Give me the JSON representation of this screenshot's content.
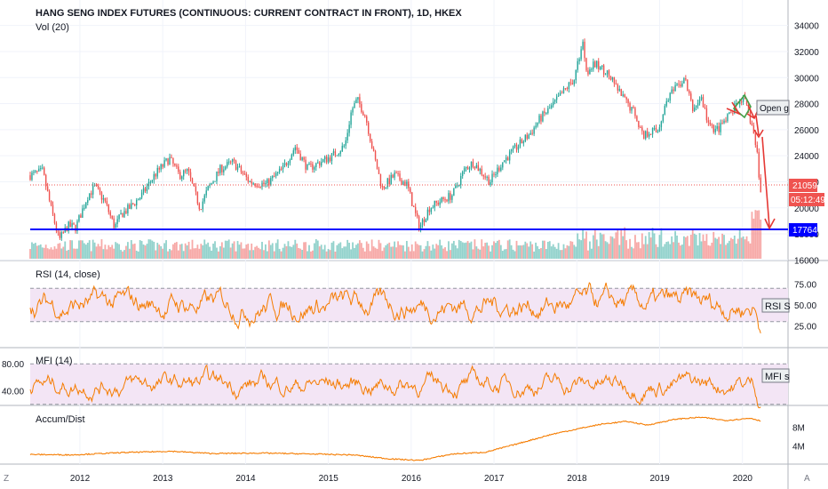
{
  "header": {
    "title": "HANG SENG INDEX FUTURES (CONTINUOUS: CURRENT CONTRACT IN FRONT), 1D, HKEX",
    "volume_label": "Vol (20)"
  },
  "labels": {
    "open_label": "Open g",
    "price_badge": "21059",
    "countdown": "05:12:49",
    "support_badge": "17764",
    "rsi_title": "RSI (14, close)",
    "rsi_tag": "RSI S",
    "mfi_title": "MFI (14)",
    "mfi_tag": "MFI s",
    "ad_title": "Accum/Dist",
    "corner_left": "Z",
    "corner_right": "A"
  },
  "colors": {
    "up": "#26a69a",
    "down": "#ef5350",
    "indicator": "#f57c00",
    "support_line": "#0000ff",
    "band_fill": "#f3e5f5",
    "arrows": "#e53935"
  },
  "chart_data": [
    {
      "type": "candlestick",
      "title": "HANG SENG INDEX FUTURES (CONTINUOUS: CURRENT CONTRACT IN FRONT), 1D, HKEX",
      "y_ticks": [
        "34000",
        "32000",
        "30000",
        "28000",
        "26000",
        "24000",
        "22000",
        "20000",
        "18000",
        "16000"
      ],
      "ylim": [
        15000,
        35000
      ],
      "x_ticks": [
        "2012",
        "2013",
        "2014",
        "2015",
        "2016",
        "2017",
        "2018",
        "2019",
        "2020"
      ],
      "xlim": [
        2011.4,
        2020.55
      ],
      "last_price": 21059,
      "horizontal_line": 17764,
      "close_anchors": [
        [
          2011.4,
          22500
        ],
        [
          2011.55,
          22800
        ],
        [
          2011.65,
          20000
        ],
        [
          2011.75,
          17500
        ],
        [
          2011.85,
          18600
        ],
        [
          2011.95,
          18500
        ],
        [
          2012.1,
          21000
        ],
        [
          2012.18,
          21600
        ],
        [
          2012.3,
          20500
        ],
        [
          2012.42,
          18500
        ],
        [
          2012.5,
          19500
        ],
        [
          2012.6,
          20000
        ],
        [
          2012.75,
          21000
        ],
        [
          2012.9,
          22500
        ],
        [
          2013.08,
          23800
        ],
        [
          2013.2,
          22500
        ],
        [
          2013.3,
          22800
        ],
        [
          2013.45,
          20000
        ],
        [
          2013.55,
          21500
        ],
        [
          2013.7,
          23000
        ],
        [
          2013.85,
          23500
        ],
        [
          2014.05,
          22000
        ],
        [
          2014.25,
          21800
        ],
        [
          2014.45,
          23000
        ],
        [
          2014.6,
          24700
        ],
        [
          2014.75,
          23000
        ],
        [
          2014.9,
          23500
        ],
        [
          2015.05,
          24000
        ],
        [
          2015.2,
          24800
        ],
        [
          2015.28,
          27500
        ],
        [
          2015.35,
          28300
        ],
        [
          2015.45,
          27000
        ],
        [
          2015.55,
          24000
        ],
        [
          2015.65,
          21500
        ],
        [
          2015.8,
          22500
        ],
        [
          2015.95,
          21800
        ],
        [
          2016.05,
          19500
        ],
        [
          2016.1,
          18500
        ],
        [
          2016.22,
          20000
        ],
        [
          2016.35,
          20500
        ],
        [
          2016.5,
          21000
        ],
        [
          2016.65,
          23000
        ],
        [
          2016.75,
          23500
        ],
        [
          2016.95,
          22000
        ],
        [
          2017.1,
          23500
        ],
        [
          2017.25,
          24500
        ],
        [
          2017.45,
          25800
        ],
        [
          2017.55,
          26800
        ],
        [
          2017.7,
          27800
        ],
        [
          2017.85,
          29000
        ],
        [
          2017.97,
          29900
        ],
        [
          2018.07,
          32800
        ],
        [
          2018.12,
          30500
        ],
        [
          2018.22,
          31000
        ],
        [
          2018.35,
          30500
        ],
        [
          2018.45,
          29500
        ],
        [
          2018.55,
          28500
        ],
        [
          2018.7,
          27300
        ],
        [
          2018.8,
          25500
        ],
        [
          2018.9,
          26000
        ],
        [
          2018.97,
          25800
        ],
        [
          2019.1,
          28500
        ],
        [
          2019.25,
          29500
        ],
        [
          2019.3,
          30000
        ],
        [
          2019.4,
          27500
        ],
        [
          2019.5,
          28500
        ],
        [
          2019.6,
          26200
        ],
        [
          2019.7,
          26000
        ],
        [
          2019.8,
          26700
        ],
        [
          2019.92,
          27800
        ],
        [
          2020.0,
          28500
        ],
        [
          2020.04,
          27900
        ],
        [
          2020.12,
          26200
        ],
        [
          2020.18,
          24000
        ],
        [
          2020.22,
          21059
        ]
      ]
    },
    {
      "type": "bar",
      "title": "Vol (20)",
      "description_hidden": false
    },
    {
      "type": "line",
      "title": "RSI (14, close)",
      "y_ticks": [
        "75.00",
        "50.00",
        "25.00"
      ],
      "ylim": [
        0,
        100
      ],
      "band": [
        30,
        70
      ]
    },
    {
      "type": "line",
      "title": "MFI (14)",
      "y_ticks": [
        "80.00",
        "40.00"
      ],
      "ylim": [
        0,
        100
      ],
      "band": [
        20,
        80
      ]
    },
    {
      "type": "line",
      "title": "Accum/Dist",
      "y_ticks": [
        "8M",
        "4M"
      ],
      "ylim": [
        0,
        12000000
      ],
      "anchors": [
        [
          2011.4,
          2100000
        ],
        [
          2011.9,
          2000000
        ],
        [
          2012.5,
          2500000
        ],
        [
          2013.1,
          2800000
        ],
        [
          2013.6,
          2300000
        ],
        [
          2014.2,
          2400000
        ],
        [
          2014.8,
          2200000
        ],
        [
          2015.3,
          2000000
        ],
        [
          2015.7,
          1200000
        ],
        [
          2016.1,
          800000
        ],
        [
          2016.5,
          2200000
        ],
        [
          2016.9,
          2600000
        ],
        [
          2017.3,
          4500000
        ],
        [
          2017.7,
          6500000
        ],
        [
          2018.1,
          8000000
        ],
        [
          2018.3,
          8700000
        ],
        [
          2018.6,
          9300000
        ],
        [
          2018.85,
          8500000
        ],
        [
          2019.2,
          9800000
        ],
        [
          2019.5,
          10200000
        ],
        [
          2019.8,
          9500000
        ],
        [
          2020.1,
          10000000
        ],
        [
          2020.22,
          9400000
        ]
      ]
    }
  ]
}
